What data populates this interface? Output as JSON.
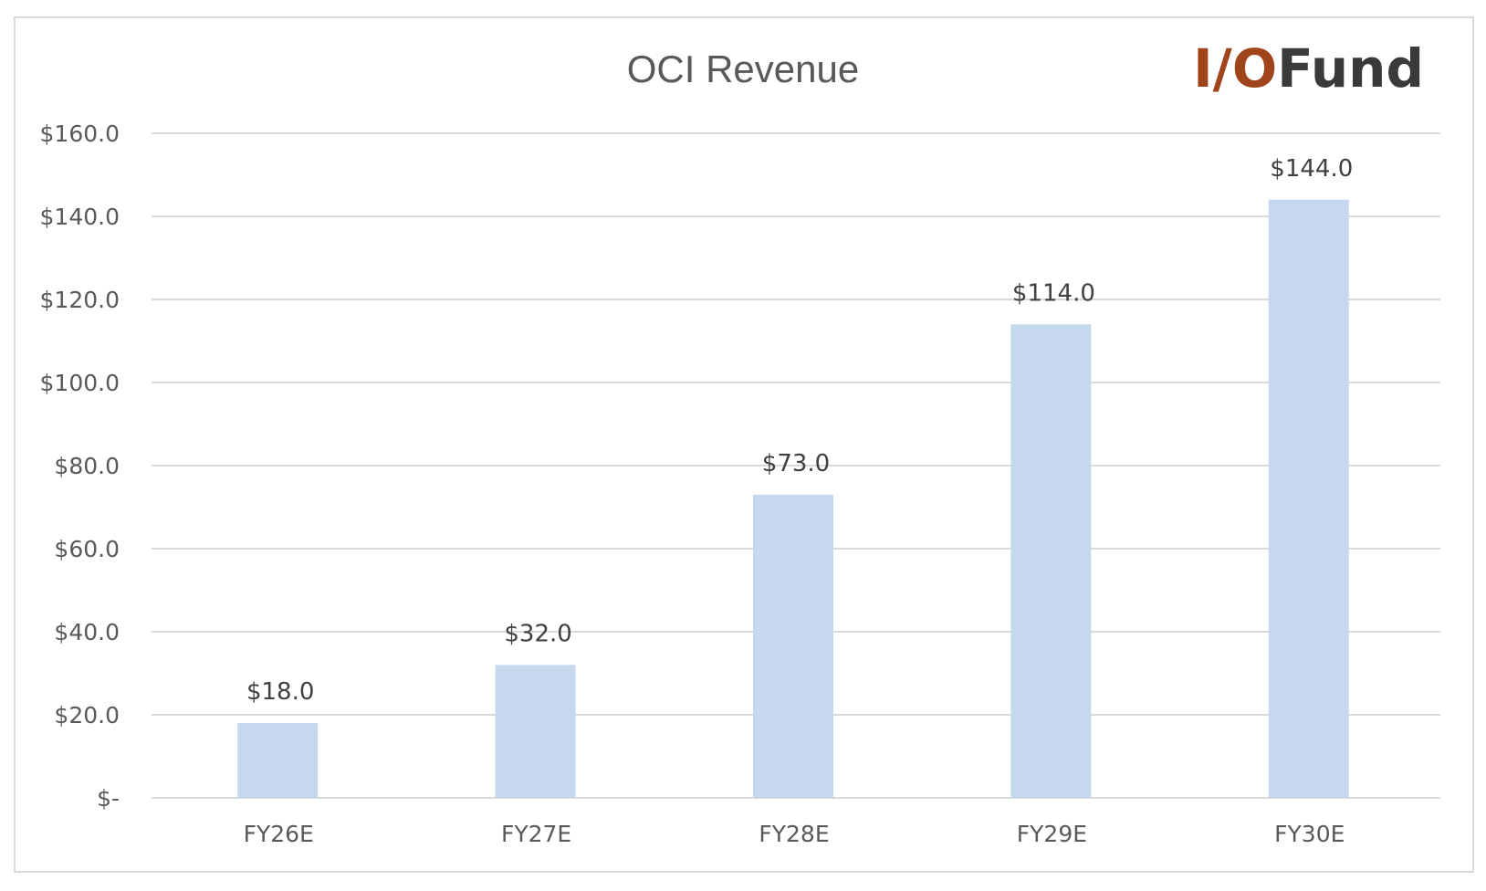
{
  "chart_data": {
    "type": "bar",
    "title": "OCI Revenue",
    "xlabel": "",
    "ylabel": "",
    "categories": [
      "FY26E",
      "FY27E",
      "FY28E",
      "FY29E",
      "FY30E"
    ],
    "values": [
      18.0,
      32.0,
      73.0,
      114.0,
      144.0
    ],
    "data_labels": [
      "$18.0",
      "$32.0",
      "$73.0",
      "$114.0",
      "$144.0"
    ],
    "ylim": [
      0,
      160
    ],
    "yticks": [
      0,
      20,
      40,
      60,
      80,
      100,
      120,
      140,
      160
    ],
    "ytick_labels": [
      "$-",
      "$20.0",
      "$40.0",
      "$60.0",
      "$80.0",
      "$100.0",
      "$120.0",
      "$140.0",
      "$160.0"
    ],
    "grid": true,
    "legend": "none",
    "bar_color": "#c5d8ed"
  },
  "logo": {
    "part1": "I/O",
    "part2": "Fund",
    "color1": "#a0441c",
    "color2": "#3a3a3a"
  }
}
